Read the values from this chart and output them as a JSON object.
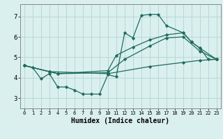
{
  "background_color": "#daf0ee",
  "grid_color": "#b8d8d4",
  "line_color": "#1e6b5e",
  "xlabel": "Humidex (Indice chaleur)",
  "xlim": [
    -0.5,
    23.5
  ],
  "ylim": [
    2.5,
    7.6
  ],
  "yticks": [
    3,
    4,
    5,
    6,
    7
  ],
  "xticks": [
    0,
    1,
    2,
    3,
    4,
    5,
    6,
    7,
    8,
    9,
    10,
    11,
    12,
    13,
    14,
    15,
    16,
    17,
    18,
    19,
    20,
    21,
    22,
    23
  ],
  "series": [
    {
      "x": [
        0,
        1,
        2,
        3,
        4,
        5,
        6,
        7,
        8,
        9,
        10,
        11,
        12,
        13,
        14,
        15,
        16,
        17,
        19,
        20,
        21,
        22,
        23
      ],
      "y": [
        4.6,
        4.5,
        3.95,
        4.2,
        3.55,
        3.55,
        3.4,
        3.2,
        3.2,
        3.2,
        4.15,
        4.05,
        6.2,
        5.95,
        7.05,
        7.1,
        7.1,
        6.55,
        6.2,
        5.75,
        5.45,
        4.9,
        4.9
      ]
    },
    {
      "x": [
        0,
        3,
        4,
        10,
        11,
        13,
        15,
        17,
        19,
        20,
        21,
        23
      ],
      "y": [
        4.6,
        4.3,
        4.2,
        4.35,
        5.1,
        5.5,
        5.85,
        6.1,
        6.2,
        5.75,
        5.45,
        4.9
      ]
    },
    {
      "x": [
        0,
        3,
        4,
        10,
        12,
        15,
        17,
        19,
        21,
        23
      ],
      "y": [
        4.6,
        4.3,
        4.2,
        4.25,
        4.9,
        5.55,
        5.95,
        6.0,
        5.3,
        4.9
      ]
    },
    {
      "x": [
        0,
        3,
        10,
        15,
        19,
        21,
        23
      ],
      "y": [
        4.6,
        4.3,
        4.2,
        4.55,
        4.75,
        4.85,
        4.9
      ]
    }
  ]
}
